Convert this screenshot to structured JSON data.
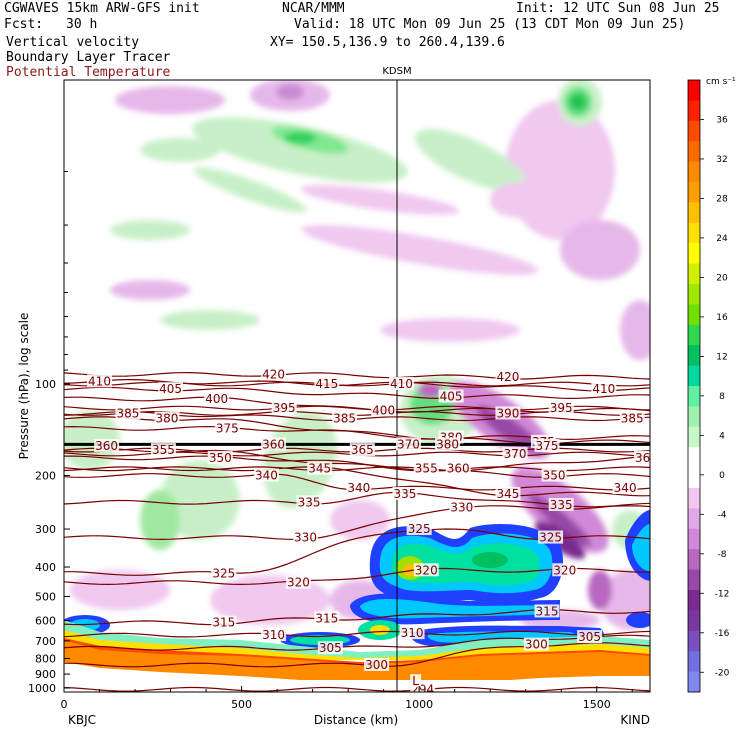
{
  "header": {
    "model": "CGWAVES 15km ARW-GFS init",
    "org": "NCAR/MMM",
    "init": "Init: 12 UTC Sun 08 Jun 25",
    "fcst_label": "Fcst:",
    "fcst_value": "30 h",
    "valid": "Valid: 18 UTC Mon 09 Jun 25 (13 CDT Mon 09 Jun 25)",
    "field1": "Vertical velocity",
    "field2": "Boundary Layer Tracer",
    "field3": "Potential Temperature",
    "xy": "XY= 150.5,136.9 to 260.4,139.6",
    "colors": {
      "field3": "#8b1a1a"
    }
  },
  "chart_data": {
    "type": "heatmap",
    "title": "",
    "xlabel": "Distance (km)",
    "ylabel": "Pressure (hPa), log scale",
    "xlim": [
      0,
      1650
    ],
    "ylim": [
      1100,
      10
    ],
    "y_scale": "log",
    "x_ticks": [
      0,
      500,
      1000,
      1500
    ],
    "y_ticks": [
      100,
      200,
      300,
      400,
      500,
      600,
      700,
      800,
      900,
      1000
    ],
    "endpoint_left": "KBJC",
    "endpoint_right": "KIND",
    "marker": {
      "label": "KDSM",
      "x": 930
    },
    "colorbar": {
      "units": "cm s⁻¹",
      "labels": [
        "36",
        "32",
        "28",
        "24",
        "20",
        "16",
        "12",
        "8",
        "4",
        "0",
        "-4",
        "-8",
        "-12",
        "-16",
        "-20"
      ],
      "colors": [
        "#ff0000",
        "#ff2000",
        "#ff4a00",
        "#ff6a00",
        "#ff8a00",
        "#ffa000",
        "#ffc000",
        "#ffe000",
        "#ffff00",
        "#d0f000",
        "#a0e800",
        "#70e000",
        "#30d850",
        "#00c060",
        "#00d8a0",
        "#60f0a0",
        "#a0f0b0",
        "#c8f8c8",
        "#ffffff",
        "#ffffff",
        "#f0c8f0",
        "#e0a8e8",
        "#d088d8",
        "#b868c0",
        "#9848a8",
        "#7a2a90",
        "#7838a0",
        "#7850c0",
        "#7070e0",
        "#8088f0"
      ],
      "value_range": [
        -22,
        40
      ]
    },
    "theta_contours": [
      {
        "value": 294,
        "label_x": 1010,
        "label_p": 1010
      },
      {
        "value": 300,
        "label_x": 880,
        "label_p": 840
      },
      {
        "value": 300,
        "label_x": 1330,
        "label_p": 720
      },
      {
        "value": 305,
        "label_x": 750,
        "label_p": 740
      },
      {
        "value": 305,
        "label_x": 1480,
        "label_p": 680
      },
      {
        "value": 310,
        "label_x": 590,
        "label_p": 670
      },
      {
        "value": 310,
        "label_x": 980,
        "label_p": 660
      },
      {
        "value": 315,
        "label_x": 450,
        "label_p": 610
      },
      {
        "value": 315,
        "label_x": 740,
        "label_p": 590
      },
      {
        "value": 315,
        "label_x": 1360,
        "label_p": 560
      },
      {
        "value": 320,
        "label_x": 660,
        "label_p": 450
      },
      {
        "value": 320,
        "label_x": 1020,
        "label_p": 410
      },
      {
        "value": 320,
        "label_x": 1410,
        "label_p": 410
      },
      {
        "value": 325,
        "label_x": 450,
        "label_p": 420
      },
      {
        "value": 325,
        "label_x": 1000,
        "label_p": 300
      },
      {
        "value": 325,
        "label_x": 1370,
        "label_p": 320
      },
      {
        "value": 330,
        "label_x": 680,
        "label_p": 320
      },
      {
        "value": 330,
        "label_x": 1120,
        "label_p": 255
      },
      {
        "value": 335,
        "label_x": 690,
        "label_p": 245
      },
      {
        "value": 335,
        "label_x": 960,
        "label_p": 230
      },
      {
        "value": 335,
        "label_x": 1400,
        "label_p": 250
      },
      {
        "value": 340,
        "label_x": 570,
        "label_p": 200
      },
      {
        "value": 340,
        "label_x": 830,
        "label_p": 220
      },
      {
        "value": 340,
        "label_x": 1580,
        "label_p": 220
      },
      {
        "value": 345,
        "label_x": 720,
        "label_p": 190
      },
      {
        "value": 345,
        "label_x": 1250,
        "label_p": 230
      },
      {
        "value": 350,
        "label_x": 440,
        "label_p": 175
      },
      {
        "value": 350,
        "label_x": 1380,
        "label_p": 200
      },
      {
        "value": 355,
        "label_x": 280,
        "label_p": 165
      },
      {
        "value": 355,
        "label_x": 1020,
        "label_p": 190
      },
      {
        "value": 360,
        "label_x": 1640,
        "label_p": 175
      },
      {
        "value": 360,
        "label_x": 1110,
        "label_p": 190
      },
      {
        "value": 365,
        "label_x": 840,
        "label_p": 165
      },
      {
        "value": 370,
        "label_x": 1270,
        "label_p": 170
      },
      {
        "value": 375,
        "label_x": 1350,
        "label_p": 155
      },
      {
        "value": 375,
        "label_x": 460,
        "label_p": 140
      },
      {
        "value": 380,
        "label_x": 1090,
        "label_p": 150
      },
      {
        "value": 380,
        "label_x": 290,
        "label_p": 130
      },
      {
        "value": 385,
        "label_x": 180,
        "label_p": 125
      },
      {
        "value": 385,
        "label_x": 790,
        "label_p": 130
      },
      {
        "value": 385,
        "label_x": 1600,
        "label_p": 130
      },
      {
        "value": 390,
        "label_x": 1250,
        "label_p": 125
      },
      {
        "value": 395,
        "label_x": 620,
        "label_p": 120
      },
      {
        "value": 395,
        "label_x": 1400,
        "label_p": 120
      },
      {
        "value": 400,
        "label_x": 430,
        "label_p": 112
      },
      {
        "value": 400,
        "label_x": 900,
        "label_p": 122
      },
      {
        "value": 405,
        "label_x": 300,
        "label_p": 104
      },
      {
        "value": 405,
        "label_x": 1090,
        "label_p": 110
      },
      {
        "value": 410,
        "label_x": 100,
        "label_p": 98
      },
      {
        "value": 410,
        "label_x": 950,
        "label_p": 100
      },
      {
        "value": 410,
        "label_x": 1520,
        "label_p": 104
      },
      {
        "value": 415,
        "label_x": 740,
        "label_p": 100
      },
      {
        "value": 420,
        "label_x": 590,
        "label_p": 93
      },
      {
        "value": 420,
        "label_x": 1250,
        "label_p": 95
      }
    ],
    "cluttered_labels": [
      {
        "text": "360",
        "label_x": 120,
        "label_p": 160
      },
      {
        "text": "360",
        "label_x": 590,
        "label_p": 158
      },
      {
        "text": "370",
        "label_x": 970,
        "label_p": 158
      },
      {
        "text": "380",
        "label_x": 1080,
        "label_p": 158
      },
      {
        "text": "375",
        "label_x": 1360,
        "label_p": 160
      },
      {
        "text": "L",
        "label_x": 990,
        "label_p": 950
      }
    ]
  }
}
